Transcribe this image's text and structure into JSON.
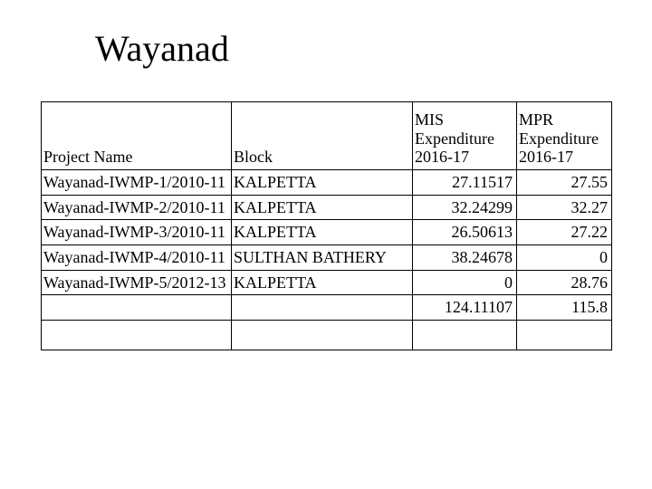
{
  "title": "Wayanad",
  "table": {
    "columns": [
      {
        "key": "project",
        "label": "Project Name"
      },
      {
        "key": "block",
        "label": "Block"
      },
      {
        "key": "mis",
        "label": "MIS Expenditure 2016-17"
      },
      {
        "key": "mpr",
        "label": "MPR Expenditure 2016-17"
      }
    ],
    "rows": [
      {
        "project": "Wayanad-IWMP-1/2010-11",
        "block": "KALPETTA",
        "mis": "27.11517",
        "mpr": "27.55"
      },
      {
        "project": "Wayanad-IWMP-2/2010-11",
        "block": "KALPETTA",
        "mis": "32.24299",
        "mpr": "32.27"
      },
      {
        "project": "Wayanad-IWMP-3/2010-11",
        "block": "KALPETTA",
        "mis": "26.50613",
        "mpr": "27.22"
      },
      {
        "project": "Wayanad-IWMP-4/2010-11",
        "block": "SULTHAN BATHERY",
        "mis": "38.24678",
        "mpr": "0"
      },
      {
        "project": "Wayanad-IWMP-5/2012-13",
        "block": "KALPETTA",
        "mis": "0",
        "mpr": "28.76"
      }
    ],
    "totals": {
      "mis": "124.11107",
      "mpr": "115.8"
    }
  },
  "colors": {
    "background": "#ffffff",
    "text": "#000000",
    "border": "#000000"
  }
}
